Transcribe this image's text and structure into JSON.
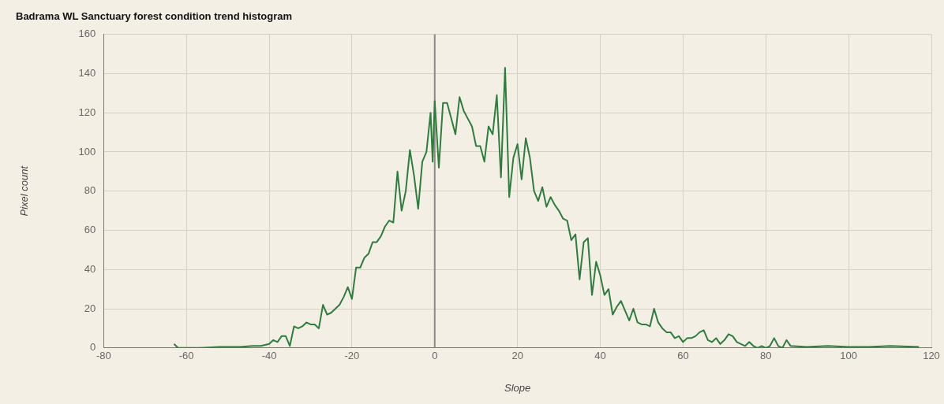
{
  "chart_data": {
    "type": "line",
    "title": "Badrama WL Sanctuary forest condition trend histogram",
    "xlabel": "Slope",
    "ylabel": "Pixel count",
    "x": [
      -63,
      -62,
      -57,
      -52,
      -47,
      -44,
      -42,
      -40,
      -39,
      -38,
      -37,
      -36,
      -35,
      -34,
      -33,
      -32,
      -31,
      -30,
      -29,
      -28,
      -27,
      -26,
      -25,
      -24,
      -23,
      -22,
      -21,
      -20,
      -19,
      -18,
      -17,
      -16,
      -15,
      -14,
      -13,
      -12,
      -11,
      -10,
      -9,
      -8,
      -7,
      -6,
      -5,
      -4,
      -3,
      -2,
      -1,
      -0.5,
      0,
      1,
      2,
      3,
      4,
      5,
      6,
      7,
      8,
      9,
      10,
      11,
      12,
      13,
      14,
      15,
      16,
      17,
      18,
      19,
      20,
      21,
      22,
      23,
      24,
      25,
      26,
      27,
      28,
      29,
      30,
      31,
      32,
      33,
      34,
      35,
      36,
      37,
      38,
      39,
      40,
      41,
      42,
      43,
      44,
      45,
      46,
      47,
      48,
      49,
      50,
      51,
      52,
      53,
      54,
      55,
      56,
      57,
      58,
      59,
      60,
      61,
      62,
      63,
      64,
      65,
      66,
      67,
      68,
      69,
      70,
      71,
      72,
      73,
      74,
      75,
      76,
      77,
      78,
      79,
      80,
      81,
      82,
      83,
      84,
      85,
      86,
      90,
      95,
      100,
      105,
      110,
      117
    ],
    "series": [
      {
        "color": "#2e7d3e",
        "values": [
          2,
          0,
          0,
          0.5,
          0.5,
          1,
          1,
          2,
          4,
          3,
          6,
          6,
          1,
          11,
          10,
          11,
          13,
          12,
          12,
          10,
          22,
          17,
          18,
          20,
          22,
          26,
          31,
          25,
          41,
          41,
          46,
          48,
          54,
          54,
          57,
          62,
          65,
          64,
          90,
          70,
          80,
          101,
          88,
          71,
          95,
          100,
          120,
          95,
          126,
          92,
          125,
          125,
          117,
          109,
          128,
          121,
          117,
          113,
          103,
          103,
          95,
          113,
          109,
          129,
          87,
          143,
          77,
          97,
          104,
          86,
          107,
          97,
          80,
          75,
          82,
          72,
          77,
          73,
          70,
          66,
          65,
          55,
          58,
          35,
          54,
          56,
          27,
          44,
          37,
          27,
          30,
          17,
          21,
          24,
          19,
          14,
          20,
          13,
          12,
          12,
          11,
          20,
          13,
          10,
          8,
          8,
          5,
          6,
          3,
          5,
          5,
          6,
          8,
          9,
          4,
          3,
          5,
          2,
          4,
          7,
          6,
          3,
          2,
          1,
          3,
          1,
          0,
          1,
          0,
          1,
          5,
          1,
          0,
          4,
          1,
          0.5,
          1,
          0.5,
          0.5,
          1,
          0.5
        ]
      }
    ],
    "xlim": [
      -80,
      120
    ],
    "xticks": [
      -80,
      -60,
      -40,
      -20,
      0,
      20,
      40,
      60,
      80,
      100,
      120
    ],
    "ylim": [
      0,
      160
    ],
    "yticks": [
      0,
      20,
      40,
      60,
      80,
      100,
      120,
      140,
      160
    ],
    "grid": true,
    "legend": false,
    "marker": "none",
    "line_style": "solid",
    "ref_lines": [
      {
        "axis": "x",
        "value": 0,
        "color": "#8a8a8a"
      }
    ]
  }
}
